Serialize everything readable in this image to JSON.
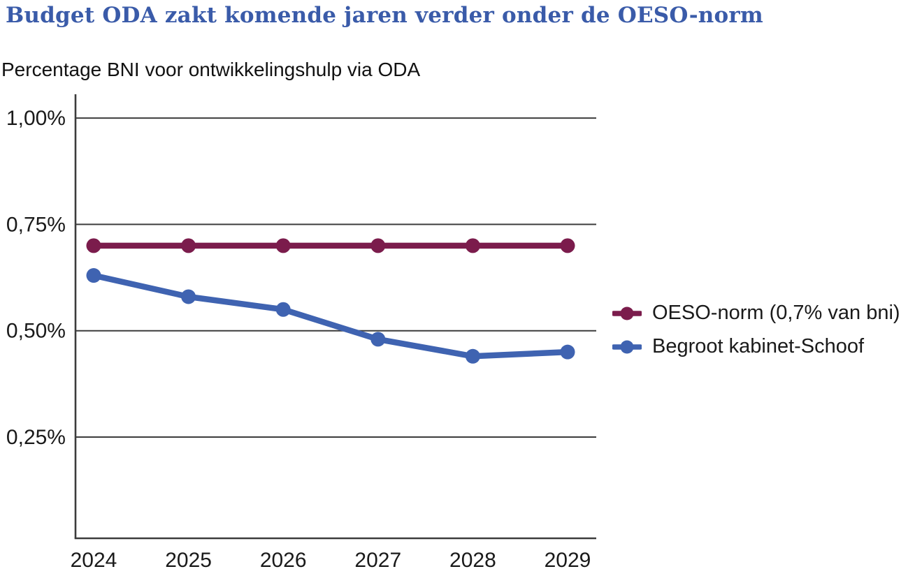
{
  "header": {
    "title": "Budget ODA zakt komende jaren verder onder de OESO-norm",
    "subtitle": "Percentage BNI voor ontwikkelingshulp via ODA"
  },
  "colors": {
    "title_accent": "#3a5ba9",
    "axis": "#3c3c3c",
    "grid": "#3c3c3c",
    "text": "#1a1a1a",
    "background": "#ffffff"
  },
  "chart_data": {
    "type": "line",
    "title": "Budget ODA zakt komende jaren verder onder de OESO-norm",
    "subtitle": "Percentage BNI voor ontwikkelingshulp via ODA",
    "categories": [
      "2024",
      "2025",
      "2026",
      "2027",
      "2028",
      "2029"
    ],
    "series": [
      {
        "name": "OESO-norm (0,7% van bni)",
        "color": "#7b1c4c",
        "values": [
          0.7,
          0.7,
          0.7,
          0.7,
          0.7,
          0.7
        ]
      },
      {
        "name": "Begroot kabinet-Schoof",
        "color": "#3f63b1",
        "values": [
          0.63,
          0.58,
          0.55,
          0.48,
          0.44,
          0.45
        ]
      }
    ],
    "yticks": [
      {
        "value": 1.0,
        "label": "1,00%"
      },
      {
        "value": 0.75,
        "label": "0,75%"
      },
      {
        "value": 0.5,
        "label": "0,50%"
      },
      {
        "value": 0.25,
        "label": "0,25%"
      }
    ],
    "xlabel": "",
    "ylabel": "Percentage BNI voor ontwikkelingshulp via ODA",
    "ylim": [
      0.012,
      1.056
    ],
    "grid": true,
    "legend_position": "right",
    "marker": "circle"
  }
}
